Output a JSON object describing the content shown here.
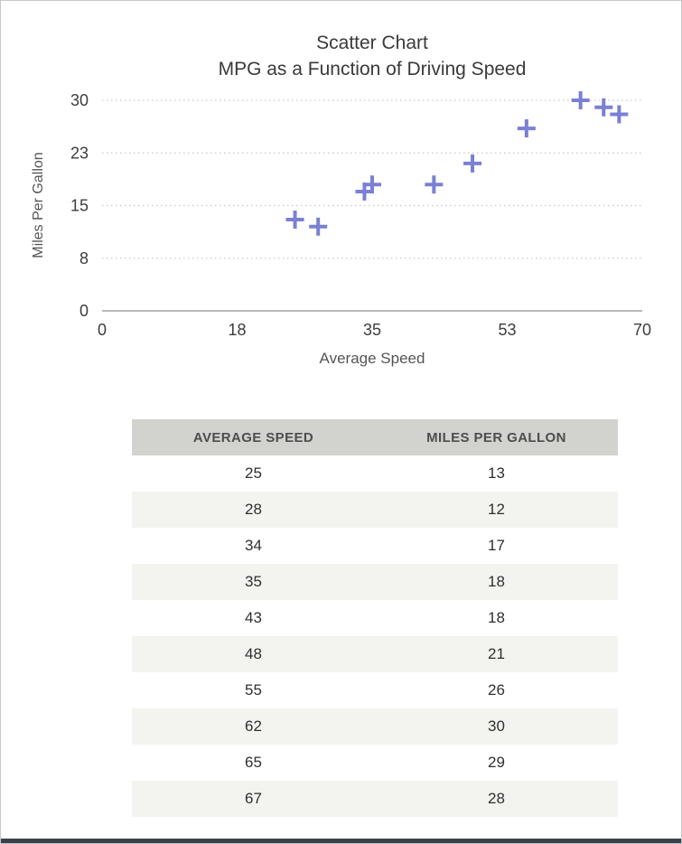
{
  "chart": {
    "title_line1": "Scatter Chart",
    "title_line2": "MPG as a Function of Driving Speed",
    "xlabel": "Average Speed",
    "ylabel": "Miles Per Gallon"
  },
  "chart_data": {
    "type": "scatter",
    "title": "Scatter Chart — MPG as a Function of Driving Speed",
    "xlabel": "Average Speed",
    "ylabel": "Miles Per Gallon",
    "x": [
      25,
      28,
      34,
      35,
      43,
      48,
      55,
      62,
      65,
      67
    ],
    "y": [
      13,
      12,
      17,
      18,
      18,
      21,
      26,
      30,
      29,
      28
    ],
    "xlim": [
      0,
      70
    ],
    "ylim": [
      0,
      30
    ],
    "x_ticks": {
      "values": [
        0,
        17.5,
        35,
        52.5,
        70
      ],
      "labels": [
        "0",
        "18",
        "35",
        "53",
        "70"
      ]
    },
    "y_ticks": {
      "values": [
        0,
        7.5,
        15,
        22.5,
        30
      ],
      "labels": [
        "0",
        "8",
        "15",
        "23",
        "30"
      ]
    },
    "marker": "plus",
    "marker_color": "#7b80d4",
    "grid": "horizontal-dotted",
    "legend": "none"
  },
  "table": {
    "headers": [
      "AVERAGE SPEED",
      "MILES PER GALLON"
    ],
    "rows": [
      [
        "25",
        "13"
      ],
      [
        "28",
        "12"
      ],
      [
        "34",
        "17"
      ],
      [
        "35",
        "18"
      ],
      [
        "43",
        "18"
      ],
      [
        "48",
        "21"
      ],
      [
        "55",
        "26"
      ],
      [
        "62",
        "30"
      ],
      [
        "65",
        "29"
      ],
      [
        "67",
        "28"
      ]
    ]
  }
}
